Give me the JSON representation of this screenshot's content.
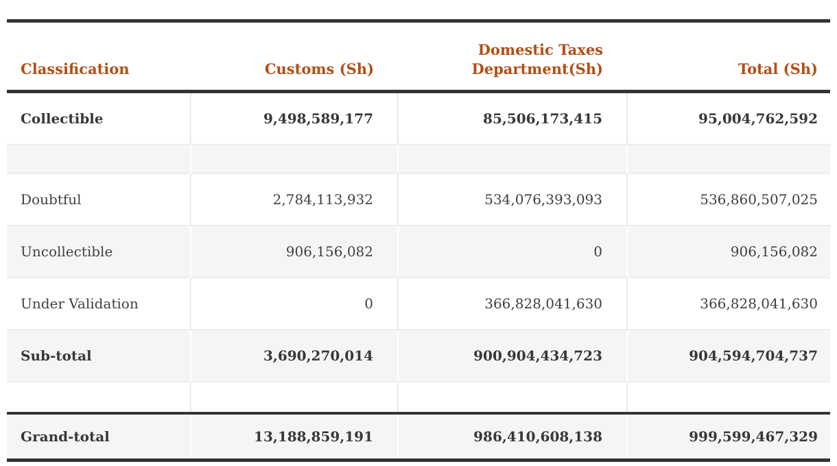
{
  "theme": {
    "accent_orange": "#b14f15",
    "heavy_border": "#333333",
    "row_shade": "#f5f5f5",
    "light_border": "#ededed",
    "text": "#3f3f3f"
  },
  "table": {
    "headers": {
      "classification": "Classification",
      "customs": "Customs (Sh)",
      "domestic": "Domestic Taxes Department(Sh)",
      "total": "Total (Sh)"
    },
    "rows": {
      "collectible": {
        "classification": "Collectible",
        "customs": "9,498,589,177",
        "domestic": "85,506,173,415",
        "total": "95,004,762,592"
      },
      "doubtful": {
        "classification": "Doubtful",
        "customs": "2,784,113,932",
        "domestic": "534,076,393,093",
        "total": "536,860,507,025"
      },
      "uncollectible": {
        "classification": "Uncollectible",
        "customs": "906,156,082",
        "domestic": "0",
        "total": "906,156,082"
      },
      "under_validation": {
        "classification": "Under Validation",
        "customs": "0",
        "domestic": "366,828,041,630",
        "total": "366,828,041,630"
      },
      "subtotal": {
        "classification": "Sub-total",
        "customs": "3,690,270,014",
        "domestic": "900,904,434,723",
        "total": "904,594,704,737"
      },
      "grand_total": {
        "classification": "Grand-total",
        "customs": "13,188,859,191",
        "domestic": "986,410,608,138",
        "total": "999,599,467,329"
      }
    }
  }
}
